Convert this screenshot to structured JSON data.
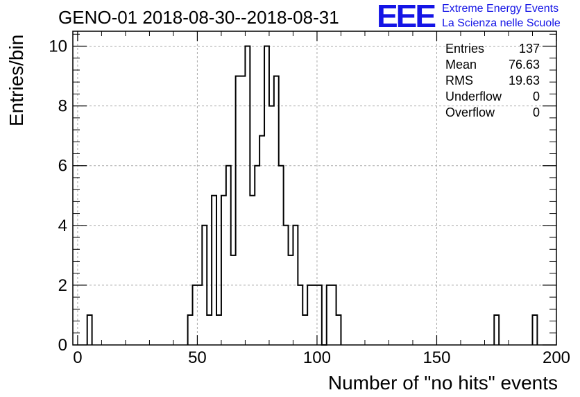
{
  "title": "GENO-01 2018-08-30--2018-08-31",
  "brand": {
    "logo": "EEE",
    "line1": "Extreme Energy Events",
    "line2": "La Scienza nelle Scuole"
  },
  "stats": [
    {
      "label": "Entries",
      "value": "137"
    },
    {
      "label": "Mean",
      "value": "76.63"
    },
    {
      "label": "RMS",
      "value": "19.63"
    },
    {
      "label": "Underflow",
      "value": "0"
    },
    {
      "label": "Overflow",
      "value": "0"
    }
  ],
  "chart_data": {
    "type": "bar",
    "title": "GENO-01 2018-08-30--2018-08-31",
    "xlabel": "Number of \"no hits\" events",
    "ylabel": "Entries/bin",
    "xlim": [
      -2,
      200
    ],
    "ylim": [
      0,
      10.5
    ],
    "bin_width": 2,
    "x_ticks": [
      0,
      50,
      100,
      150,
      200
    ],
    "y_ticks": [
      0,
      2,
      4,
      6,
      8,
      10
    ],
    "grid": true,
    "bins": [
      {
        "x": 5,
        "y": 1
      },
      {
        "x": 47,
        "y": 1
      },
      {
        "x": 49,
        "y": 2
      },
      {
        "x": 51,
        "y": 2
      },
      {
        "x": 53,
        "y": 4
      },
      {
        "x": 55,
        "y": 1
      },
      {
        "x": 57,
        "y": 5
      },
      {
        "x": 59,
        "y": 1
      },
      {
        "x": 61,
        "y": 5
      },
      {
        "x": 63,
        "y": 6
      },
      {
        "x": 65,
        "y": 3
      },
      {
        "x": 67,
        "y": 9
      },
      {
        "x": 69,
        "y": 9
      },
      {
        "x": 71,
        "y": 10
      },
      {
        "x": 73,
        "y": 5
      },
      {
        "x": 75,
        "y": 6
      },
      {
        "x": 77,
        "y": 7
      },
      {
        "x": 79,
        "y": 10
      },
      {
        "x": 81,
        "y": 8
      },
      {
        "x": 83,
        "y": 9
      },
      {
        "x": 85,
        "y": 6
      },
      {
        "x": 87,
        "y": 4
      },
      {
        "x": 89,
        "y": 3
      },
      {
        "x": 91,
        "y": 4
      },
      {
        "x": 93,
        "y": 2
      },
      {
        "x": 95,
        "y": 1
      },
      {
        "x": 97,
        "y": 2
      },
      {
        "x": 99,
        "y": 2
      },
      {
        "x": 101,
        "y": 2
      },
      {
        "x": 103,
        "y": 0
      },
      {
        "x": 105,
        "y": 2
      },
      {
        "x": 107,
        "y": 2
      },
      {
        "x": 109,
        "y": 1
      },
      {
        "x": 175,
        "y": 1
      },
      {
        "x": 191,
        "y": 1
      }
    ]
  }
}
